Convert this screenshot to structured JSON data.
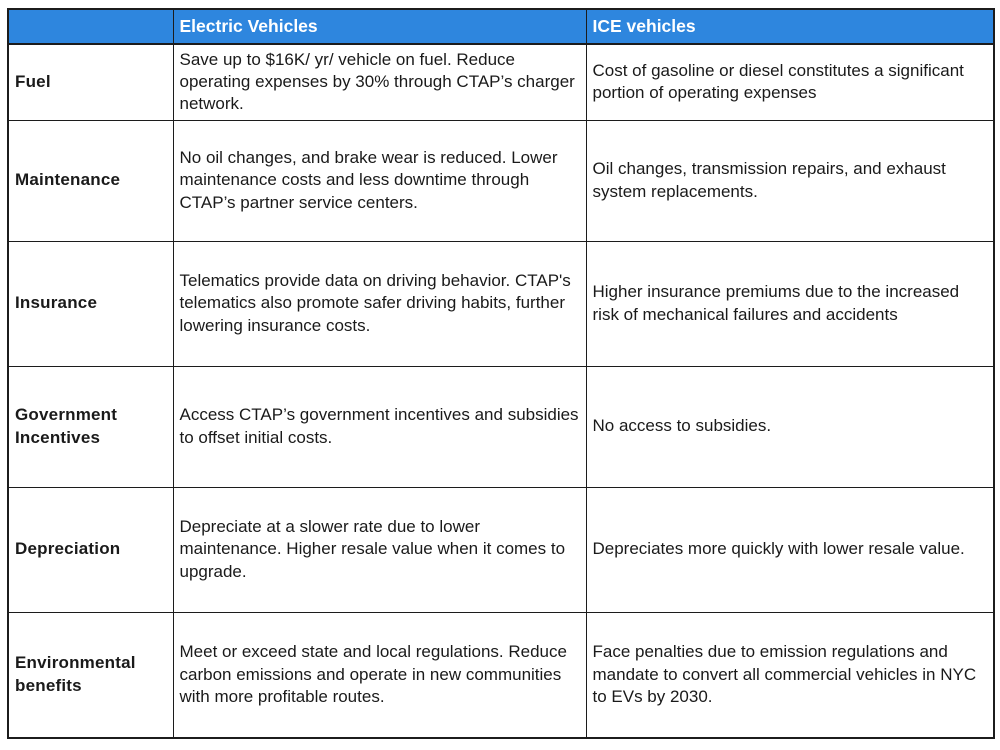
{
  "table": {
    "columns": [
      "",
      "Electric Vehicles",
      "ICE vehicles"
    ],
    "rows": [
      {
        "label": "Fuel",
        "ev": "Save up to $16K/ yr/ vehicle on fuel. Reduce operating expenses by 30% through CTAP’s charger network.",
        "ice": "Cost of gasoline or diesel constitutes a significant portion of operating expenses"
      },
      {
        "label": "Maintenance",
        "ev": "No oil changes, and brake wear is reduced. Lower maintenance costs and less downtime through CTAP’s partner service centers.",
        "ice": "Oil changes, transmission repairs, and exhaust system replacements."
      },
      {
        "label": "Insurance",
        "ev": "Telematics provide data on driving behavior. CTAP's telematics also promote safer driving habits, further lowering insurance costs.",
        "ice": "Higher insurance premiums due to the increased risk of mechanical failures and accidents"
      },
      {
        "label": "Government Incentives",
        "ev": "Access CTAP’s government incentives and subsidies to offset initial costs.",
        "ice": "No access to subsidies."
      },
      {
        "label": "Depreciation",
        "ev": "Depreciate at a slower rate due to lower maintenance. Higher resale value when it comes to upgrade.",
        "ice": "Depreciates more quickly with lower resale value."
      },
      {
        "label": "Environmental benefits",
        "ev": "Meet or exceed state and local regulations. Reduce carbon emissions and operate in new communities with more profitable routes.",
        "ice": "Face penalties due to emission regulations and mandate to convert all commercial vehicles in NYC to EVs by 2030."
      }
    ]
  },
  "colors": {
    "header_bg": "#2e86de",
    "header_text": "#ffffff",
    "body_text": "#1a1a1a",
    "border": "#1c1c1c",
    "background": "#ffffff"
  }
}
